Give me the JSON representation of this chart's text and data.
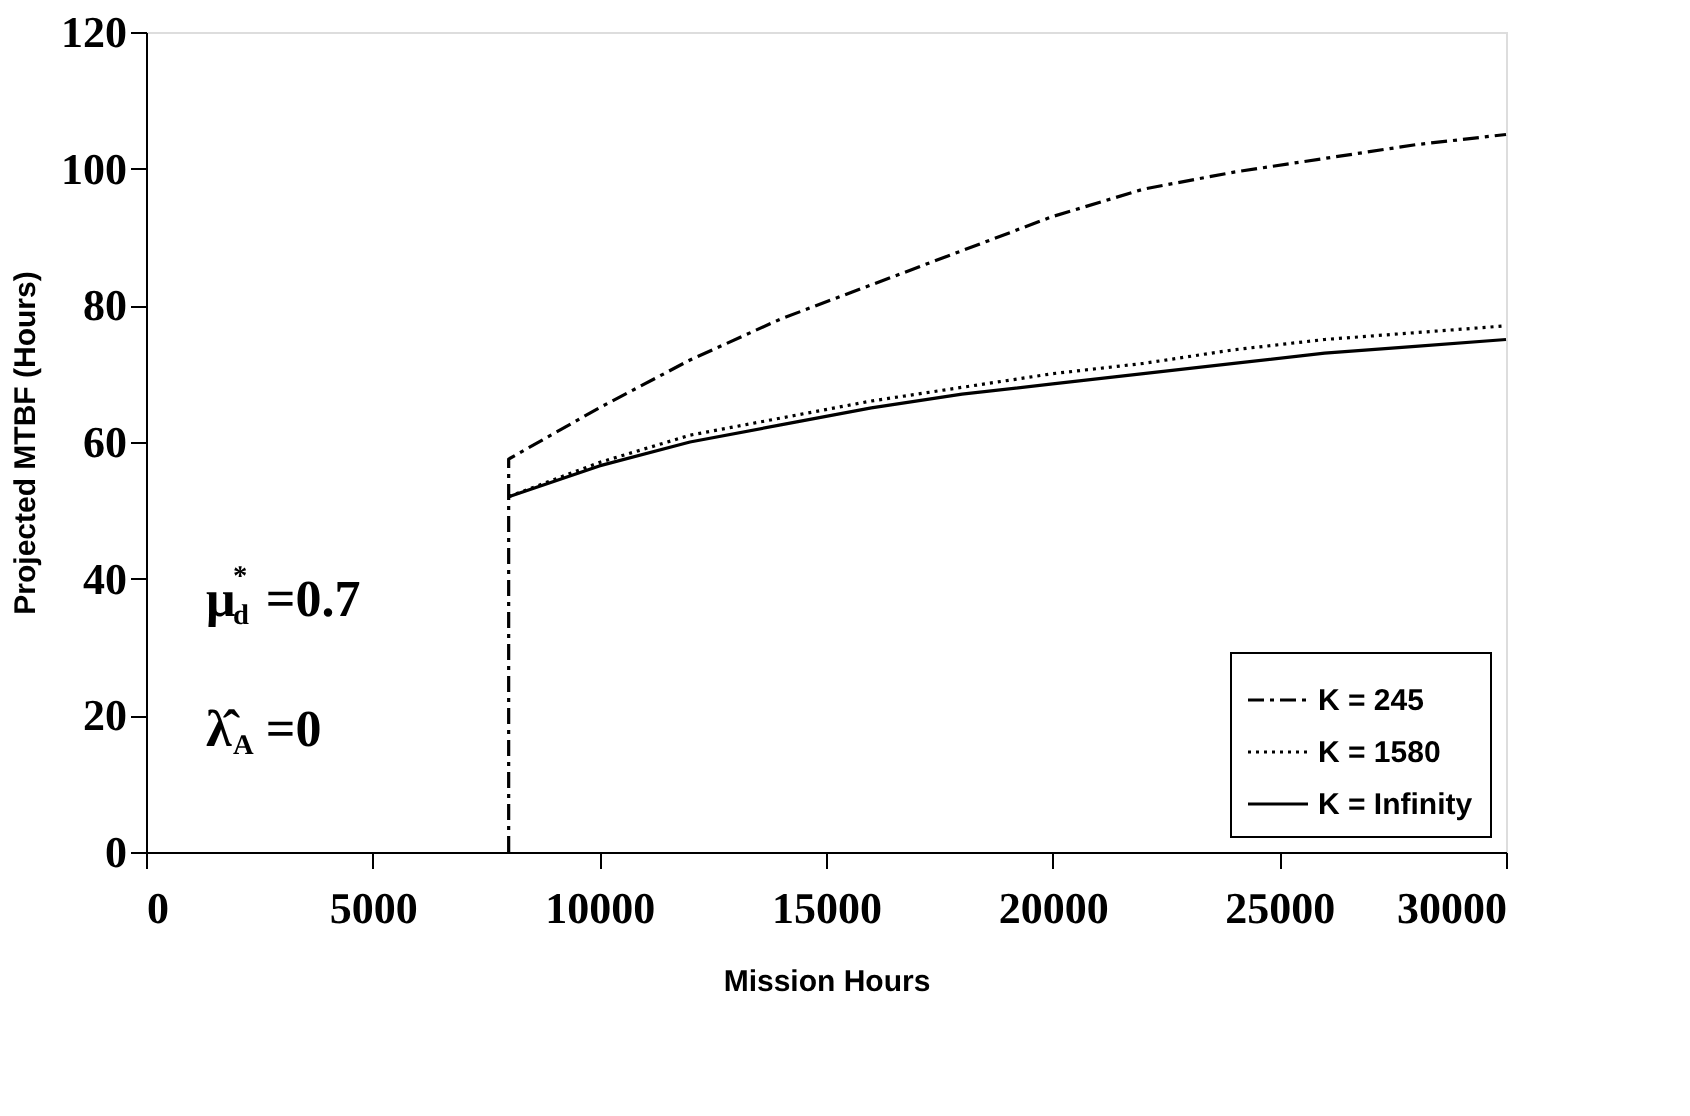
{
  "chart_data": {
    "type": "line",
    "xlabel": "Mission Hours",
    "ylabel": "Projected MTBF (Hours)",
    "xlim": [
      0,
      30000
    ],
    "xticks": [
      0,
      5000,
      10000,
      15000,
      20000,
      25000,
      30000
    ],
    "ylim": [
      0,
      120
    ],
    "yticks": [
      0,
      20,
      40,
      60,
      80,
      100,
      120
    ],
    "grid": false,
    "legend": "bottom right",
    "marker": "none",
    "annotations": [
      "μ$_{d}$$^{*}$ =0.7",
      "λ̂$_{A}$ =0"
    ],
    "series": [
      {
        "name": "K = 245",
        "color": "#000000",
        "line_style": "dashed",
        "x": [
          8000,
          8000,
          10000,
          12000,
          14000,
          16000,
          18000,
          20000,
          22000,
          24000,
          26000,
          28000,
          30000
        ],
        "values": [
          0,
          57.5,
          65,
          72,
          78,
          83,
          88,
          93,
          97,
          99.5,
          101.5,
          103.5,
          105
        ]
      },
      {
        "name": "K = 1580",
        "color": "#000000",
        "line_style": "dotted",
        "x": [
          8000,
          10000,
          12000,
          14000,
          16000,
          18000,
          20000,
          22000,
          24000,
          26000,
          28000,
          30000
        ],
        "values": [
          52,
          57,
          61,
          63.5,
          66,
          68,
          70,
          71.5,
          73.5,
          75,
          76,
          77
        ]
      },
      {
        "name": "K = Infinity",
        "color": "#000000",
        "line_style": "solid",
        "x": [
          8000,
          10000,
          12000,
          14000,
          16000,
          18000,
          20000,
          22000,
          24000,
          26000,
          28000,
          30000
        ],
        "values": [
          52,
          56.5,
          60,
          62.5,
          65,
          67,
          68.5,
          70,
          71.5,
          73,
          74,
          75
        ]
      }
    ]
  }
}
